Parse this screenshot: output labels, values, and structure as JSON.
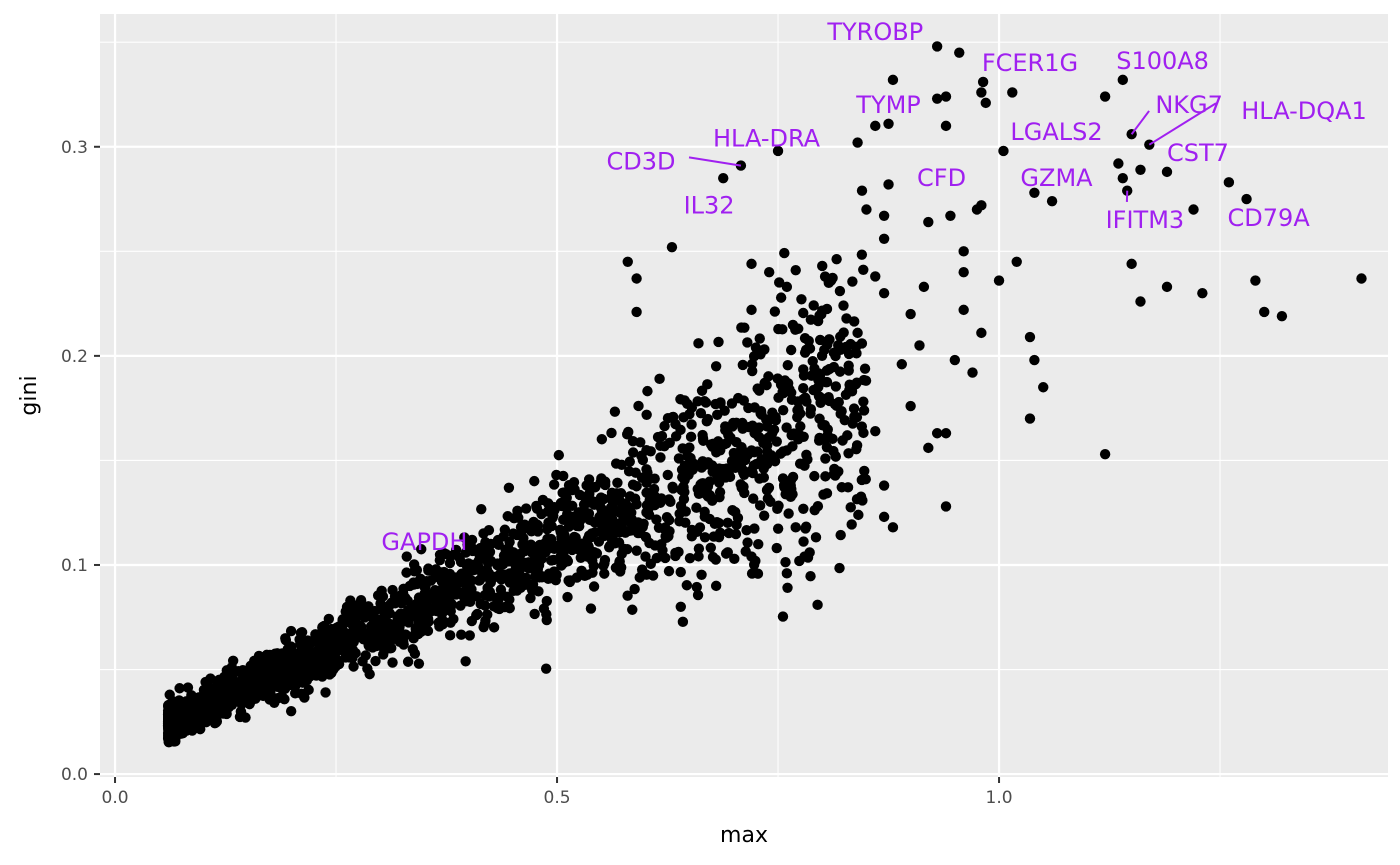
{
  "chart_data": {
    "type": "scatter",
    "title": "",
    "xlabel": "max",
    "ylabel": "gini",
    "xlim": [
      -0.017,
      1.44
    ],
    "ylim": [
      -0.0014,
      0.3635
    ],
    "x_ticks": [
      0.0,
      0.5,
      1.0
    ],
    "x_tick_labels": [
      "0.0",
      "0.5",
      "1.0"
    ],
    "y_ticks": [
      0.0,
      0.1,
      0.2,
      0.3
    ],
    "y_tick_labels": [
      "0.0",
      "0.1",
      "0.2",
      "0.3"
    ],
    "grid": true,
    "panel_background": "#ebebeb",
    "grid_color": "#ffffff",
    "point_color": "#000000",
    "label_color": "#a020f0",
    "labeled_points": [
      {
        "name": "TYROBP",
        "x": 0.93,
        "y": 0.348,
        "label_x": 0.86,
        "label_y": 0.355
      },
      {
        "name": "FCER1G",
        "x": 0.982,
        "y": 0.331,
        "label_x": 1.035,
        "label_y": 0.34
      },
      {
        "name": "S100A8",
        "x": 1.14,
        "y": 0.332,
        "label_x": 1.185,
        "label_y": 0.341
      },
      {
        "name": "TYMP",
        "x": 0.875,
        "y": 0.311,
        "label_x": 0.875,
        "label_y": 0.32
      },
      {
        "name": "NKG7",
        "x": 1.15,
        "y": 0.306,
        "label_x": 1.215,
        "label_y": 0.32,
        "leader": true
      },
      {
        "name": "HLA-DQA1",
        "x": 1.17,
        "y": 0.301,
        "label_x": 1.345,
        "label_y": 0.317,
        "leader": true
      },
      {
        "name": "HLA-DRA",
        "x": 0.75,
        "y": 0.298,
        "label_x": 0.737,
        "label_y": 0.304
      },
      {
        "name": "LGALS2",
        "x": 1.005,
        "y": 0.298,
        "label_x": 1.065,
        "label_y": 0.307
      },
      {
        "name": "CST7",
        "x": 1.16,
        "y": 0.289,
        "label_x": 1.225,
        "label_y": 0.297
      },
      {
        "name": "CD3D",
        "x": 0.708,
        "y": 0.291,
        "label_x": 0.595,
        "label_y": 0.293,
        "leader": true
      },
      {
        "name": "CFD",
        "x": 0.98,
        "y": 0.272,
        "label_x": 0.935,
        "label_y": 0.285
      },
      {
        "name": "GZMA",
        "x": 1.04,
        "y": 0.278,
        "label_x": 1.065,
        "label_y": 0.285
      },
      {
        "name": "IFITM3",
        "x": 1.145,
        "y": 0.279,
        "label_x": 1.165,
        "label_y": 0.265,
        "leader": true
      },
      {
        "name": "CD79A",
        "x": 1.28,
        "y": 0.275,
        "label_x": 1.305,
        "label_y": 0.266
      },
      {
        "name": "IL32",
        "x": 0.688,
        "y": 0.285,
        "label_x": 0.672,
        "label_y": 0.272
      },
      {
        "name": "GAPDH",
        "x": 0.33,
        "y": 0.104,
        "label_x": 0.35,
        "label_y": 0.111
      }
    ],
    "outlier_points": [
      [
        0.955,
        0.345
      ],
      [
        0.88,
        0.332
      ],
      [
        0.93,
        0.323
      ],
      [
        0.94,
        0.324
      ],
      [
        0.98,
        0.326
      ],
      [
        0.985,
        0.321
      ],
      [
        1.015,
        0.326
      ],
      [
        1.12,
        0.324
      ],
      [
        1.14,
        0.285
      ],
      [
        1.135,
        0.292
      ],
      [
        1.22,
        0.27
      ],
      [
        1.19,
        0.288
      ],
      [
        1.26,
        0.283
      ],
      [
        1.06,
        0.274
      ],
      [
        0.86,
        0.31
      ],
      [
        0.94,
        0.31
      ],
      [
        0.84,
        0.302
      ],
      [
        0.875,
        0.282
      ],
      [
        0.845,
        0.279
      ],
      [
        0.975,
        0.27
      ],
      [
        0.945,
        0.267
      ],
      [
        0.92,
        0.264
      ],
      [
        0.87,
        0.267
      ],
      [
        0.85,
        0.27
      ],
      [
        0.63,
        0.252
      ],
      [
        0.58,
        0.245
      ],
      [
        0.59,
        0.237
      ],
      [
        0.72,
        0.244
      ],
      [
        0.74,
        0.24
      ],
      [
        0.76,
        0.233
      ],
      [
        1.02,
        0.245
      ],
      [
        1.0,
        0.236
      ],
      [
        1.12,
        0.153
      ],
      [
        1.15,
        0.244
      ],
      [
        1.16,
        0.226
      ],
      [
        1.19,
        0.233
      ],
      [
        1.23,
        0.23
      ],
      [
        1.29,
        0.236
      ],
      [
        1.3,
        0.221
      ],
      [
        1.32,
        0.219
      ],
      [
        1.41,
        0.237
      ],
      [
        1.035,
        0.209
      ],
      [
        1.04,
        0.198
      ],
      [
        1.05,
        0.185
      ],
      [
        1.035,
        0.17
      ],
      [
        0.94,
        0.128
      ],
      [
        0.92,
        0.156
      ],
      [
        0.97,
        0.192
      ],
      [
        0.98,
        0.211
      ],
      [
        0.96,
        0.222
      ],
      [
        0.915,
        0.233
      ],
      [
        0.95,
        0.198
      ],
      [
        0.93,
        0.163
      ],
      [
        0.94,
        0.163
      ],
      [
        0.59,
        0.221
      ],
      [
        0.72,
        0.222
      ],
      [
        0.66,
        0.206
      ],
      [
        0.77,
        0.241
      ],
      [
        0.8,
        0.243
      ],
      [
        0.81,
        0.236
      ],
      [
        0.87,
        0.256
      ],
      [
        0.86,
        0.238
      ],
      [
        0.87,
        0.23
      ],
      [
        0.84,
        0.211
      ],
      [
        0.82,
        0.231
      ],
      [
        0.9,
        0.22
      ],
      [
        0.89,
        0.196
      ],
      [
        0.87,
        0.123
      ],
      [
        0.88,
        0.118
      ],
      [
        0.96,
        0.25
      ],
      [
        0.96,
        0.24
      ],
      [
        0.9,
        0.176
      ],
      [
        0.91,
        0.205
      ],
      [
        0.83,
        0.193
      ],
      [
        0.86,
        0.164
      ],
      [
        0.87,
        0.138
      ],
      [
        0.77,
        0.118
      ],
      [
        0.78,
        0.104
      ],
      [
        0.76,
        0.096
      ],
      [
        0.72,
        0.104
      ],
      [
        0.68,
        0.09
      ],
      [
        0.64,
        0.08
      ]
    ],
    "cloud_model": {
      "description": "dense point cloud along the diagonal",
      "n_points": 2200,
      "x_range": [
        0.06,
        0.85
      ],
      "gini_relation": "gini ≈ 0.27 * max, spread grows with max"
    }
  }
}
